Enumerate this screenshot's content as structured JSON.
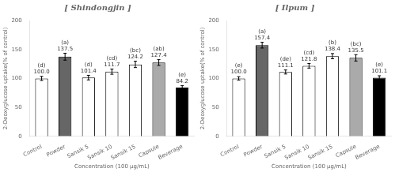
{
  "chart_data": [
    {
      "type": "bar",
      "title": "[ Shindongjin ]",
      "categories": [
        "Control",
        "Powder",
        "Sansik 5",
        "Sansik 10",
        "Sansik 15",
        "Capsule",
        "Beverage"
      ],
      "values": [
        100.0,
        137.5,
        101.4,
        111.7,
        124.2,
        127.4,
        84.2
      ],
      "value_labels": [
        "100.0",
        "137.5",
        "101.4",
        "111.7",
        "124.2",
        "127.4",
        "84.2"
      ],
      "errors": [
        3.5,
        6.0,
        4.0,
        4.5,
        5.5,
        5.0,
        3.5
      ],
      "annotations": [
        "(d)",
        "(a)",
        "(d)",
        "(cd)",
        "(bc)",
        "(ab)",
        "(e)"
      ],
      "colors": [
        "white",
        "#666666",
        "white",
        "white",
        "white",
        "#aaaaaa",
        "black"
      ],
      "x_label": "Concentration (100 μg/mL)",
      "y_label": "2-Deoxyglucose uptake(% of control)",
      "ylim": [
        0,
        200
      ],
      "yticks": [
        0,
        50,
        100,
        150,
        200
      ],
      "grid": false,
      "data_labels": true
    },
    {
      "type": "bar",
      "title": "[ Ilpum ]",
      "categories": [
        "Control",
        "Powder",
        "Sansik 5",
        "Sansik 10",
        "Sansik 15",
        "Capsule",
        "Beverage"
      ],
      "values": [
        100.0,
        157.4,
        111.1,
        121.8,
        138.4,
        135.5,
        101.1
      ],
      "value_labels": [
        "100.0",
        "157.4",
        "111.1",
        "121.8",
        "138.4",
        "135.5",
        "101.1"
      ],
      "errors": [
        3.0,
        5.0,
        3.5,
        4.0,
        4.5,
        5.5,
        3.5
      ],
      "annotations": [
        "(e)",
        "(a)",
        "(de)",
        "(cd)",
        "(b)",
        "(bc)",
        "(e)"
      ],
      "colors": [
        "white",
        "#666666",
        "white",
        "white",
        "white",
        "#aaaaaa",
        "black"
      ],
      "x_label": "Concentration (100 μg/mL)",
      "y_label": "2-Deoxyglucose uptake(% of control)",
      "ylim": [
        0,
        200
      ],
      "yticks": [
        0,
        50,
        100,
        150,
        200
      ],
      "grid": false,
      "data_labels": true
    }
  ]
}
